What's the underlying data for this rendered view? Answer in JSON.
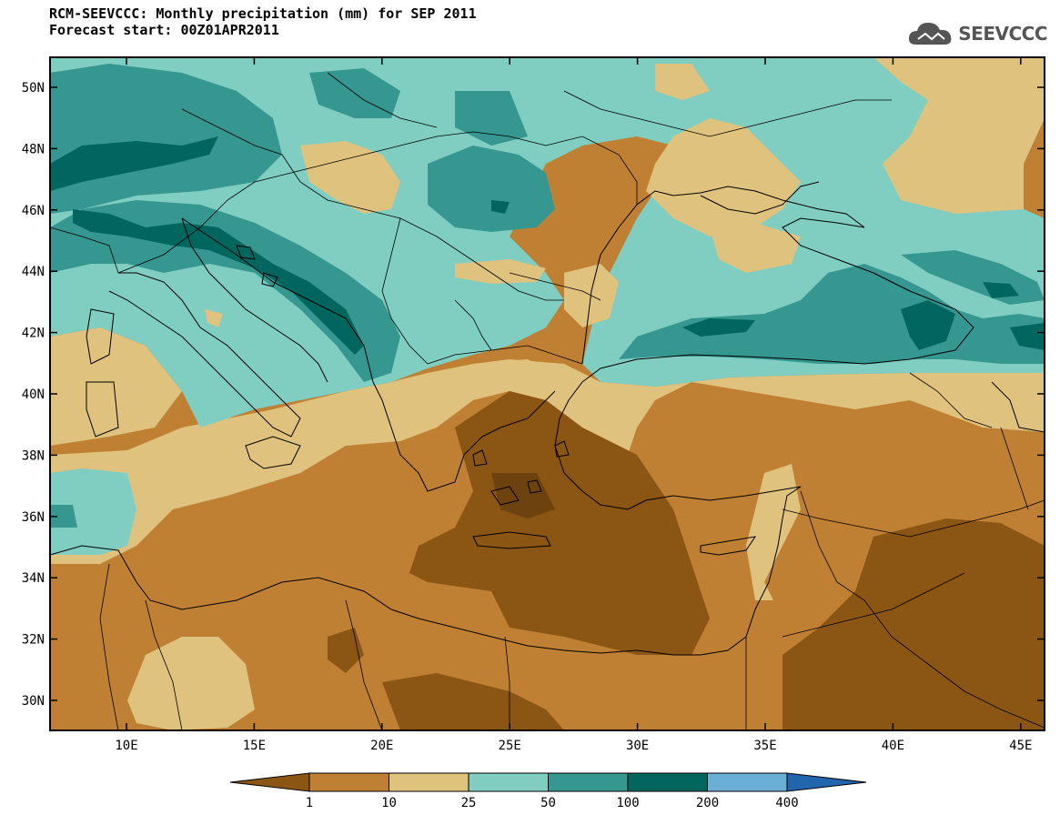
{
  "header": {
    "title_line1": "RCM-SEEVCCC: Monthly precipitation (mm) for SEP 2011",
    "title_line2": "Forecast start: 00Z01APR2011",
    "logo_text": "SEEVCCC"
  },
  "map": {
    "lat_labels": [
      "50N",
      "48N",
      "46N",
      "44N",
      "42N",
      "40N",
      "38N",
      "36N",
      "34N",
      "32N",
      "30N"
    ],
    "lon_labels": [
      "10E",
      "15E",
      "20E",
      "25E",
      "30E",
      "35E",
      "40E",
      "45E"
    ]
  },
  "legend": {
    "thresholds": [
      "1",
      "10",
      "25",
      "50",
      "100",
      "200",
      "400"
    ],
    "colors": [
      "#8b5514",
      "#bf8033",
      "#dfc27d",
      "#80cdc1",
      "#35978f",
      "#01665e",
      "#6baed6",
      "#2166ac"
    ]
  },
  "colors": {
    "c0": "#8b5514",
    "c1": "#bf8033",
    "c2": "#dfc27d",
    "c3": "#80cdc1",
    "c4": "#35978f",
    "c5": "#01665e"
  }
}
